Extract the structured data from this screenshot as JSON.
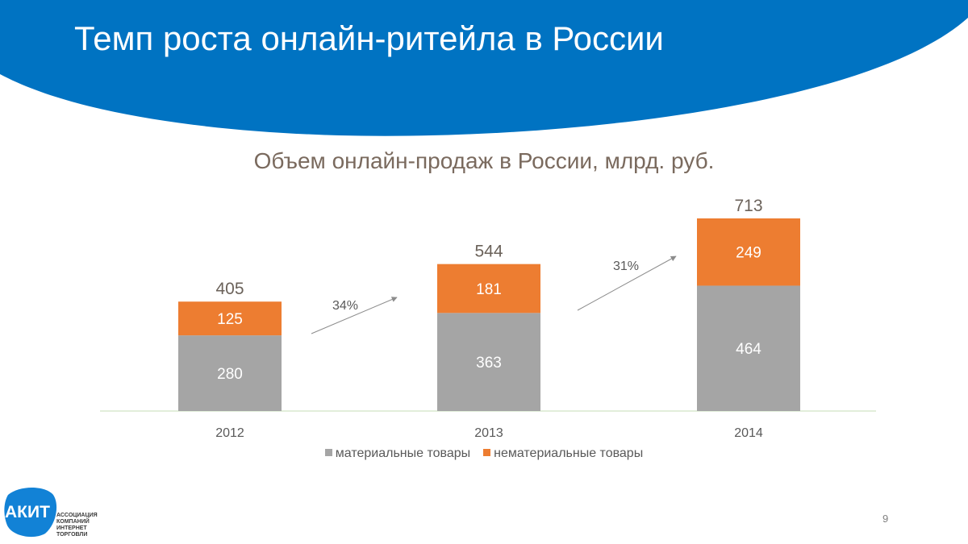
{
  "slide": {
    "title": "Темп роста онлайн-ритейла в России",
    "page_number": "9"
  },
  "colors": {
    "header": "#0073c2",
    "material": "#a5a5a5",
    "nonmaterial": "#ed7d31",
    "total_label": "#6b625a",
    "arrow": "#8c8c8c"
  },
  "logo": {
    "name": "АКИТ",
    "lines": [
      "АССОЦИАЦИЯ",
      "КОМПАНИЙ",
      "ИНТЕРНЕТ",
      "ТОРГОВЛИ"
    ]
  },
  "chart_data": {
    "type": "bar",
    "stacked": true,
    "title": "Объем онлайн-продаж в России, млрд. руб.",
    "categories": [
      "2012",
      "2013",
      "2014"
    ],
    "series": [
      {
        "name": "материальные товары",
        "values": [
          280,
          363,
          464
        ]
      },
      {
        "name": "нематериальные товары",
        "values": [
          125,
          181,
          249
        ]
      }
    ],
    "totals": [
      405,
      544,
      713
    ],
    "growth": [
      "34%",
      "31%"
    ],
    "ylim": [
      0,
      713
    ],
    "legend_position": "bottom",
    "grid": false
  }
}
